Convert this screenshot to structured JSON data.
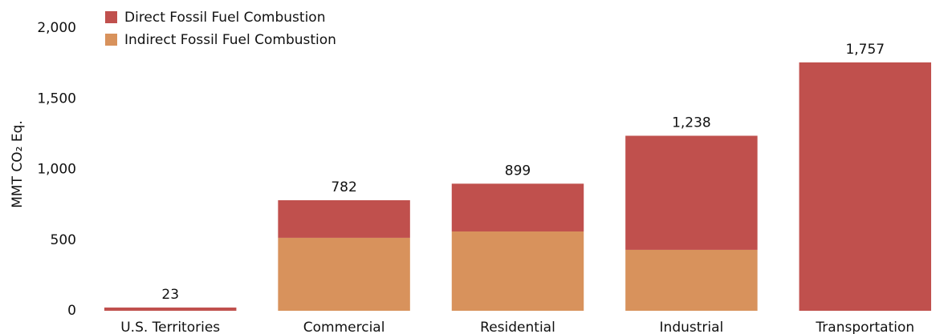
{
  "chart_data": {
    "type": "stacked_bar",
    "y_label": "MMT CO₂ Eq.",
    "categories": [
      "U.S. Territories",
      "Commercial",
      "Residential",
      "Industrial",
      "Transportation"
    ],
    "series": [
      {
        "name": "Indirect Fossil Fuel Combustion",
        "color": "#d8925c",
        "values": [
          0,
          516,
          561,
          431,
          0
        ]
      },
      {
        "name": "Direct Fossil Fuel Combustion",
        "color": "#c0504d",
        "values": [
          23,
          266,
          338,
          807,
          1757
        ]
      }
    ],
    "totals": [
      23,
      782,
      899,
      1238,
      1757
    ],
    "total_labels": [
      "23",
      "782",
      "899",
      "1,238",
      "1,757"
    ],
    "ylim": [
      0,
      2000
    ],
    "yticks": [
      0,
      500,
      {
        "value": 1000,
        "label": "1,000"
      },
      {
        "value": 1500,
        "label": "1,500"
      },
      {
        "value": 2000,
        "label": "2,000"
      }
    ],
    "legend": "top-left",
    "grid": false
  }
}
